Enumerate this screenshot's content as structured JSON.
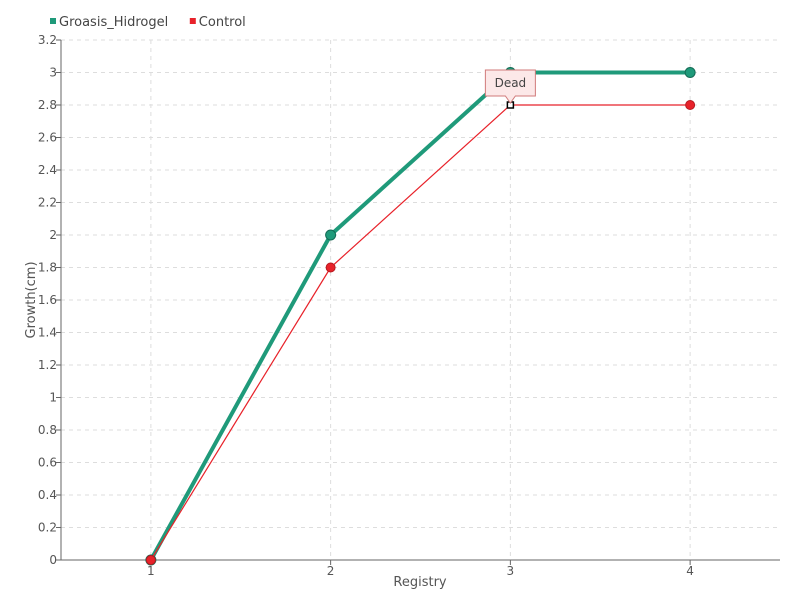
{
  "chart_data": {
    "type": "line",
    "x": [
      1,
      2,
      3,
      4
    ],
    "series": [
      {
        "name": "Groasis_Hidrogel",
        "color": "#1f9a7a",
        "values": [
          0,
          2,
          3,
          3
        ]
      },
      {
        "name": "Control",
        "color": "#e8222a",
        "values": [
          0,
          1.8,
          2.8,
          2.8
        ]
      }
    ],
    "xlabel": "Registry",
    "ylabel": "Growth(cm)",
    "xlim": [
      0.5,
      4.5
    ],
    "ylim": [
      0,
      3.2
    ],
    "xticks": [
      "1",
      "2",
      "3",
      "4"
    ],
    "yticks": [
      "0",
      "0.2",
      "0.4",
      "0.6",
      "0.8",
      "1",
      "1.2",
      "1.4",
      "1.6",
      "1.8",
      "2",
      "2.2",
      "2.4",
      "2.6",
      "2.8",
      "3",
      "3.2"
    ],
    "grid": true,
    "legend_position": "top-left",
    "annotations": [
      {
        "text": "Dead",
        "series": "Control",
        "x": 3,
        "y": 2.8
      }
    ]
  }
}
